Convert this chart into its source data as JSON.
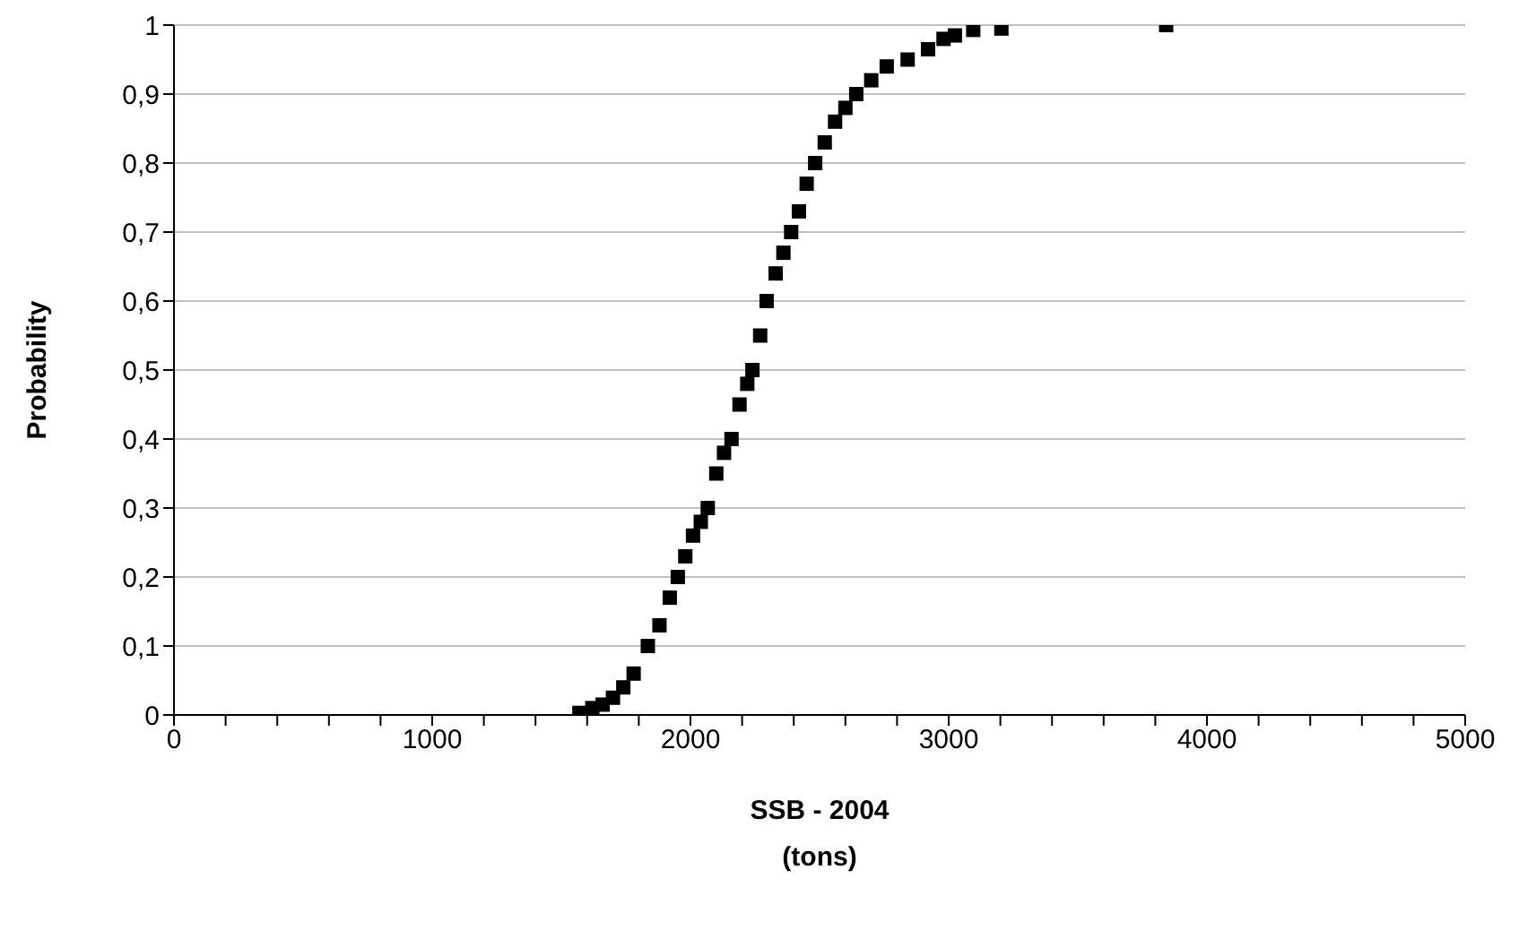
{
  "chart_data": {
    "type": "scatter",
    "xlabel": "SSB - 2004\n(tons)",
    "ylabel": "Probability",
    "x": [
      1570,
      1620,
      1660,
      1700,
      1740,
      1780,
      1835,
      1880,
      1920,
      1951,
      1980,
      2010,
      2040,
      2067,
      2100,
      2130,
      2159,
      2190,
      2220,
      2240,
      2270,
      2295,
      2330,
      2360,
      2390,
      2420,
      2450,
      2483,
      2520,
      2560,
      2600,
      2642,
      2700,
      2760,
      2841,
      2920,
      2980,
      3024,
      3095,
      3204,
      3842
    ],
    "series": [
      {
        "color": "#000000",
        "values": [
          0.003,
          0.01,
          0.015,
          0.025,
          0.04,
          0.06,
          0.1,
          0.13,
          0.17,
          0.2,
          0.23,
          0.26,
          0.28,
          0.3,
          0.35,
          0.38,
          0.4,
          0.45,
          0.48,
          0.5,
          0.55,
          0.6,
          0.64,
          0.67,
          0.7,
          0.73,
          0.77,
          0.8,
          0.83,
          0.86,
          0.88,
          0.9,
          0.92,
          0.94,
          0.95,
          0.965,
          0.98,
          0.985,
          0.993,
          0.995,
          1.0
        ]
      }
    ],
    "xlim": [
      0,
      5000
    ],
    "xticks": [
      0,
      {
        "value": 200,
        "label": null
      },
      {
        "value": 400,
        "label": null
      },
      {
        "value": 600,
        "label": null
      },
      {
        "value": 800,
        "label": null
      },
      1000,
      {
        "value": 1200,
        "label": null
      },
      {
        "value": 1400,
        "label": null
      },
      {
        "value": 1600,
        "label": null
      },
      {
        "value": 1800,
        "label": null
      },
      2000,
      {
        "value": 2200,
        "label": null
      },
      {
        "value": 2400,
        "label": null
      },
      {
        "value": 2600,
        "label": null
      },
      {
        "value": 2800,
        "label": null
      },
      3000,
      {
        "value": 3200,
        "label": null
      },
      {
        "value": 3400,
        "label": null
      },
      {
        "value": 3600,
        "label": null
      },
      {
        "value": 3800,
        "label": null
      },
      4000,
      {
        "value": 4200,
        "label": null
      },
      {
        "value": 4400,
        "label": null
      },
      {
        "value": 4600,
        "label": null
      },
      {
        "value": 4800,
        "label": null
      },
      5000
    ],
    "ylim": [
      0,
      1
    ],
    "yticks": [
      0,
      {
        "value": 0.1,
        "label": "0,1"
      },
      {
        "value": 0.2,
        "label": "0,2"
      },
      {
        "value": 0.3,
        "label": "0,3"
      },
      {
        "value": 0.4,
        "label": "0,4"
      },
      {
        "value": 0.5,
        "label": "0,5"
      },
      {
        "value": 0.6,
        "label": "0,6"
      },
      {
        "value": 0.7,
        "label": "0,7"
      },
      {
        "value": 0.8,
        "label": "0,8"
      },
      {
        "value": 0.9,
        "label": "0,9"
      },
      1
    ],
    "grid": "y",
    "marker": "square"
  }
}
